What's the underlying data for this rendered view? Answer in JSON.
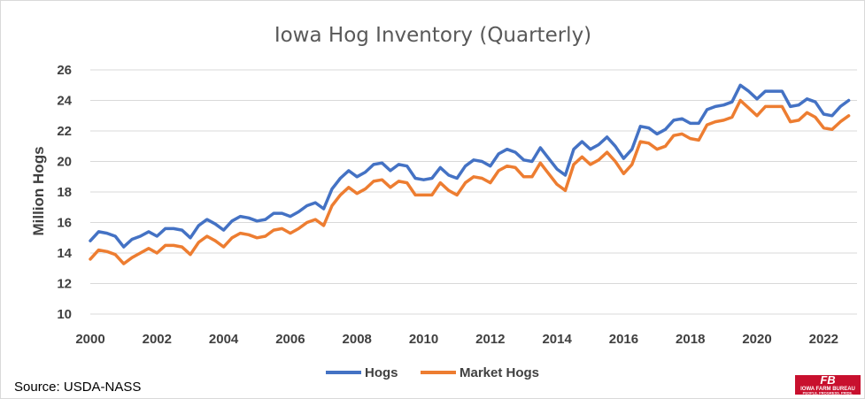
{
  "chart_data": {
    "type": "line",
    "title": "Iowa Hog Inventory (Quarterly)",
    "xlabel": "",
    "ylabel": "Million Hogs",
    "xlim": [
      2000,
      2023
    ],
    "ylim": [
      10,
      26
    ],
    "x_ticks": [
      "2000",
      "2002",
      "2004",
      "2006",
      "2008",
      "2010",
      "2012",
      "2014",
      "2016",
      "2018",
      "2020",
      "2022"
    ],
    "y_ticks": [
      "10",
      "12",
      "14",
      "16",
      "18",
      "20",
      "22",
      "24",
      "26"
    ],
    "grid": true,
    "legend_position": "bottom",
    "x_start": 2000,
    "x_step": 0.25,
    "series": [
      {
        "name": "Hogs",
        "color": "#4472C4",
        "values": [
          14.8,
          15.4,
          15.3,
          15.1,
          14.4,
          14.9,
          15.1,
          15.4,
          15.1,
          15.6,
          15.6,
          15.5,
          15.0,
          15.8,
          16.2,
          15.9,
          15.5,
          16.1,
          16.4,
          16.3,
          16.1,
          16.2,
          16.6,
          16.6,
          16.4,
          16.7,
          17.1,
          17.3,
          16.9,
          18.2,
          18.9,
          19.4,
          19.0,
          19.3,
          19.8,
          19.9,
          19.4,
          19.8,
          19.7,
          18.9,
          18.8,
          18.9,
          19.6,
          19.1,
          18.9,
          19.7,
          20.1,
          20.0,
          19.7,
          20.5,
          20.8,
          20.6,
          20.1,
          20.0,
          20.9,
          20.2,
          19.5,
          19.1,
          20.8,
          21.3,
          20.8,
          21.1,
          21.6,
          21.0,
          20.2,
          20.8,
          22.3,
          22.2,
          21.8,
          22.1,
          22.7,
          22.8,
          22.5,
          22.5,
          23.4,
          23.6,
          23.7,
          23.9,
          25.0,
          24.6,
          24.1,
          24.6,
          24.6,
          24.6,
          23.6,
          23.7,
          24.1,
          23.9,
          23.1,
          23.0,
          23.6,
          24.0
        ]
      },
      {
        "name": "Market Hogs",
        "color": "#ED7D31",
        "values": [
          13.6,
          14.2,
          14.1,
          13.9,
          13.3,
          13.7,
          14.0,
          14.3,
          14.0,
          14.5,
          14.5,
          14.4,
          13.9,
          14.7,
          15.1,
          14.8,
          14.4,
          15.0,
          15.3,
          15.2,
          15.0,
          15.1,
          15.5,
          15.6,
          15.3,
          15.6,
          16.0,
          16.2,
          15.8,
          17.1,
          17.8,
          18.3,
          17.9,
          18.2,
          18.7,
          18.8,
          18.3,
          18.7,
          18.6,
          17.8,
          17.8,
          17.8,
          18.6,
          18.1,
          17.8,
          18.6,
          19.0,
          18.9,
          18.6,
          19.4,
          19.7,
          19.6,
          19.0,
          19.0,
          19.9,
          19.2,
          18.5,
          18.1,
          19.8,
          20.3,
          19.8,
          20.1,
          20.6,
          20.0,
          19.2,
          19.8,
          21.3,
          21.2,
          20.8,
          21.0,
          21.7,
          21.8,
          21.5,
          21.4,
          22.4,
          22.6,
          22.7,
          22.9,
          24.0,
          23.5,
          23.0,
          23.6,
          23.6,
          23.6,
          22.6,
          22.7,
          23.2,
          22.9,
          22.2,
          22.1,
          22.6,
          23.0
        ]
      }
    ]
  },
  "source_note": "Source: USDA-NASS",
  "logo": {
    "mark": "FB",
    "name": "IOWA FARM BUREAU",
    "tagline": "PEOPLE. PROGRESS. PRIDE.",
    "color": "#c8102e",
    "icon": "farm-bureau-logo-icon"
  }
}
